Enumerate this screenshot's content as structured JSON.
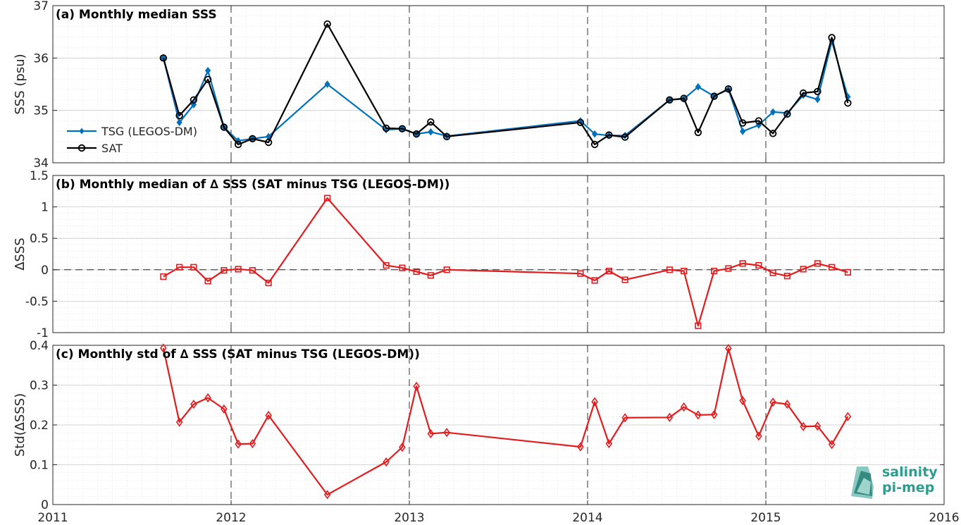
{
  "logo": {
    "line1": "salinity",
    "line2": "pi-mep",
    "color": "#2a9d8f"
  },
  "chart_data": [
    {
      "type": "line",
      "title": "(a) Monthly median SSS",
      "ylabel": "SSS (psu)",
      "xlim": [
        2011,
        2016
      ],
      "ylim": [
        34,
        37
      ],
      "xticks": [
        "2011",
        "2012",
        "2013",
        "2014",
        "2015",
        "2016"
      ],
      "yticks": [
        "34",
        "35",
        "36",
        "37"
      ],
      "grid": true,
      "legend_position": "middle-left",
      "series": [
        {
          "name": "TSG (LEGOS-DM)",
          "color": "#0072bd",
          "marker": "filled-diamond",
          "x": [
            2011.62,
            2011.71,
            2011.79,
            2011.87,
            2011.96,
            2012.04,
            2012.12,
            2012.21,
            2012.54,
            2012.87,
            2012.96,
            2013.04,
            2013.12,
            2013.21,
            2013.96,
            2014.04,
            2014.12,
            2014.21,
            2014.46,
            2014.54,
            2014.62,
            2014.71,
            2014.79,
            2014.87,
            2014.96,
            2015.04,
            2015.12,
            2015.21,
            2015.29,
            2015.37,
            2015.46
          ],
          "values": [
            36.0,
            34.77,
            35.11,
            35.76,
            34.68,
            34.42,
            34.46,
            34.5,
            35.5,
            34.63,
            34.65,
            34.55,
            34.59,
            34.51,
            34.8,
            34.55,
            34.52,
            34.52,
            35.2,
            35.22,
            35.45,
            35.27,
            35.4,
            34.6,
            34.72,
            34.97,
            34.95,
            35.29,
            35.21,
            36.32,
            35.26
          ]
        },
        {
          "name": "SAT",
          "color": "#000000",
          "marker": "open-circle",
          "x": [
            2011.62,
            2011.71,
            2011.79,
            2011.87,
            2011.96,
            2012.04,
            2012.12,
            2012.21,
            2012.54,
            2012.87,
            2012.96,
            2013.04,
            2013.12,
            2013.21,
            2013.96,
            2014.04,
            2014.12,
            2014.21,
            2014.46,
            2014.54,
            2014.62,
            2014.71,
            2014.79,
            2014.87,
            2014.96,
            2015.04,
            2015.12,
            2015.21,
            2015.29,
            2015.37,
            2015.46
          ],
          "values": [
            36.0,
            34.9,
            35.2,
            35.59,
            34.68,
            34.35,
            34.46,
            34.39,
            36.65,
            34.66,
            34.65,
            34.55,
            34.78,
            34.5,
            34.77,
            34.35,
            34.53,
            34.49,
            35.2,
            35.23,
            34.58,
            35.27,
            35.41,
            34.76,
            34.8,
            34.56,
            34.93,
            35.33,
            35.36,
            36.39,
            35.14
          ]
        }
      ]
    },
    {
      "type": "line",
      "title": "(b) Monthly median of ∆ SSS (SAT minus TSG (LEGOS-DM))",
      "ylabel": "∆SSS",
      "xlim": [
        2011,
        2016
      ],
      "ylim": [
        -1,
        1.5
      ],
      "xticks": [
        "2011",
        "2012",
        "2013",
        "2014",
        "2015",
        "2016"
      ],
      "yticks": [
        "-1",
        "-0.5",
        "0",
        "0.5",
        "1",
        "1.5"
      ],
      "grid": true,
      "zero_line": true,
      "series": [
        {
          "color": "#e41a1c",
          "marker": "open-square",
          "x": [
            2011.62,
            2011.71,
            2011.79,
            2011.87,
            2011.96,
            2012.04,
            2012.12,
            2012.21,
            2012.54,
            2012.87,
            2012.96,
            2013.04,
            2013.12,
            2013.21,
            2013.96,
            2014.04,
            2014.12,
            2014.21,
            2014.46,
            2014.54,
            2014.62,
            2014.71,
            2014.79,
            2014.87,
            2014.96,
            2015.04,
            2015.12,
            2015.21,
            2015.29,
            2015.37,
            2015.46
          ],
          "values": [
            -0.11,
            0.04,
            0.04,
            -0.18,
            -0.01,
            0.01,
            -0.01,
            -0.21,
            1.14,
            0.07,
            0.03,
            -0.03,
            -0.09,
            0.0,
            -0.06,
            -0.17,
            -0.02,
            -0.16,
            0.0,
            -0.02,
            -0.89,
            -0.02,
            0.02,
            0.1,
            0.07,
            -0.05,
            -0.1,
            0.01,
            0.1,
            0.04,
            -0.04
          ]
        }
      ]
    },
    {
      "type": "line",
      "title": "(c) Monthly std of ∆ SSS (SAT minus TSG (LEGOS-DM))",
      "ylabel": "Std(∆SSS)",
      "xlim": [
        2011,
        2016
      ],
      "ylim": [
        0,
        0.4
      ],
      "xticks": [
        "2011",
        "2012",
        "2013",
        "2014",
        "2015",
        "2016"
      ],
      "yticks": [
        "0",
        "0.1",
        "0.2",
        "0.3",
        "0.4"
      ],
      "grid": true,
      "series": [
        {
          "color": "#e41a1c",
          "marker": "open-diamond",
          "x": [
            2011.62,
            2011.71,
            2011.79,
            2011.87,
            2011.96,
            2012.04,
            2012.12,
            2012.21,
            2012.54,
            2012.87,
            2012.96,
            2013.04,
            2013.12,
            2013.21,
            2013.96,
            2014.04,
            2014.12,
            2014.21,
            2014.46,
            2014.54,
            2014.62,
            2014.71,
            2014.79,
            2014.87,
            2014.96,
            2015.04,
            2015.12,
            2015.21,
            2015.29,
            2015.37,
            2015.46
          ],
          "values": [
            0.393,
            0.207,
            0.252,
            0.268,
            0.24,
            0.152,
            0.153,
            0.224,
            0.025,
            0.107,
            0.144,
            0.297,
            0.178,
            0.181,
            0.145,
            0.258,
            0.153,
            0.218,
            0.219,
            0.245,
            0.225,
            0.226,
            0.392,
            0.261,
            0.172,
            0.257,
            0.252,
            0.196,
            0.197,
            0.151,
            0.221
          ]
        }
      ]
    }
  ]
}
